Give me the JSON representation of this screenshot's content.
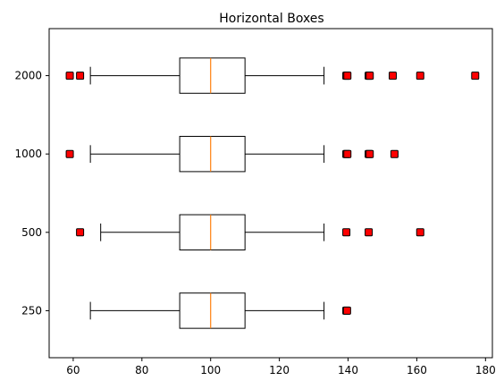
{
  "chart_data": {
    "type": "boxplot",
    "orientation": "horizontal",
    "title": "Horizontal Boxes",
    "xlabel": "",
    "ylabel": "",
    "xlim": [
      53,
      182
    ],
    "xticks": [
      60,
      80,
      100,
      120,
      140,
      160,
      180
    ],
    "categories": [
      "250",
      "500",
      "1000",
      "2000"
    ],
    "series": [
      {
        "category": "250",
        "whisker_low": 65,
        "q1": 91,
        "median": 100,
        "q3": 110,
        "whisker_high": 133,
        "outliers": [
          139.5,
          139.7
        ]
      },
      {
        "category": "500",
        "whisker_low": 68,
        "q1": 91,
        "median": 100,
        "q3": 110,
        "whisker_high": 133,
        "outliers": [
          62,
          139.5,
          146,
          161
        ]
      },
      {
        "category": "1000",
        "whisker_low": 65,
        "q1": 91,
        "median": 100,
        "q3": 110,
        "whisker_high": 133,
        "outliers": [
          59,
          139.5,
          139.8,
          146,
          146.3,
          153.5
        ]
      },
      {
        "category": "2000",
        "whisker_low": 65,
        "q1": 91,
        "median": 100,
        "q3": 110,
        "whisker_high": 133,
        "outliers": [
          59,
          62,
          139.5,
          139.8,
          146,
          146.3,
          153,
          161,
          177
        ]
      }
    ],
    "colors": {
      "box": "#000000",
      "median": "#ff7f0e",
      "outlier_fill": "#ff0000",
      "outlier_edge": "#000000"
    },
    "grid": false,
    "legend": "none"
  }
}
